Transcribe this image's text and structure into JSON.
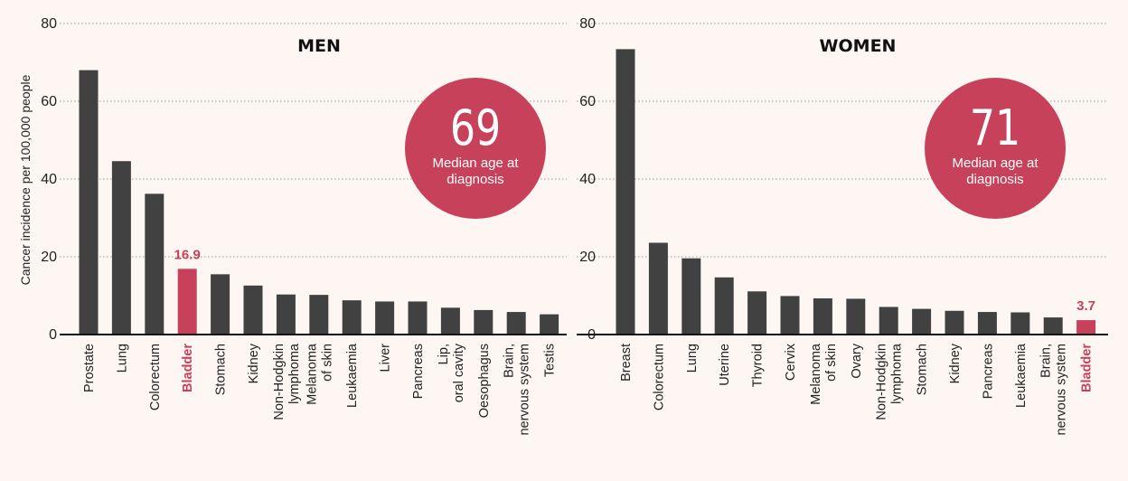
{
  "colors": {
    "bar": "#414141",
    "highlight": "#c8415a",
    "grid": "#9a9a9a",
    "background": "#fdf6f3",
    "circle": "#c8415a"
  },
  "y_axis_label": "Cancer incidence per 100,000 people",
  "chart_data": [
    {
      "type": "bar",
      "title": "MEN",
      "ylabel": "Cancer incidence per 100,000 people",
      "ylim": [
        0,
        80
      ],
      "yticks": [
        0,
        20,
        40,
        60,
        80
      ],
      "grid": true,
      "categories": [
        "Prostate",
        "Lung",
        "Colorectum",
        "Bladder",
        "Stomach",
        "Kidney",
        "Non-Hodgkin lymphoma",
        "Melanoma of skin",
        "Leukaemia",
        "Liver",
        "Pancreas",
        "Lip, oral cavity",
        "Oesophagus",
        "Brain, nervous system",
        "Testis"
      ],
      "values": [
        68.0,
        44.6,
        36.2,
        16.9,
        15.5,
        12.6,
        10.3,
        10.2,
        8.8,
        8.5,
        8.5,
        6.9,
        6.3,
        5.8,
        5.2
      ],
      "highlight": "Bladder",
      "highlight_label": "16.9",
      "median_age": "69",
      "median_label": "Median age at diagnosis"
    },
    {
      "type": "bar",
      "title": "WOMEN",
      "ylabel": "",
      "ylim": [
        0,
        80
      ],
      "yticks": [
        0,
        20,
        40,
        60,
        80
      ],
      "grid": true,
      "categories": [
        "Breast",
        "Colorectum",
        "Lung",
        "Uterine",
        "Thyroid",
        "Cervix",
        "Melanoma of skin",
        "Ovary",
        "Non-Hodgkin lymphoma",
        "Stomach",
        "Kidney",
        "Pancreas",
        "Leukaemia",
        "Brain, nervous system",
        "Bladder"
      ],
      "values": [
        73.4,
        23.6,
        19.6,
        14.7,
        11.1,
        9.9,
        9.3,
        9.2,
        7.1,
        6.6,
        6.1,
        5.8,
        5.7,
        4.4,
        3.7
      ],
      "highlight": "Bladder",
      "highlight_label": "3.7",
      "median_age": "71",
      "median_label": "Median age at diagnosis"
    }
  ]
}
